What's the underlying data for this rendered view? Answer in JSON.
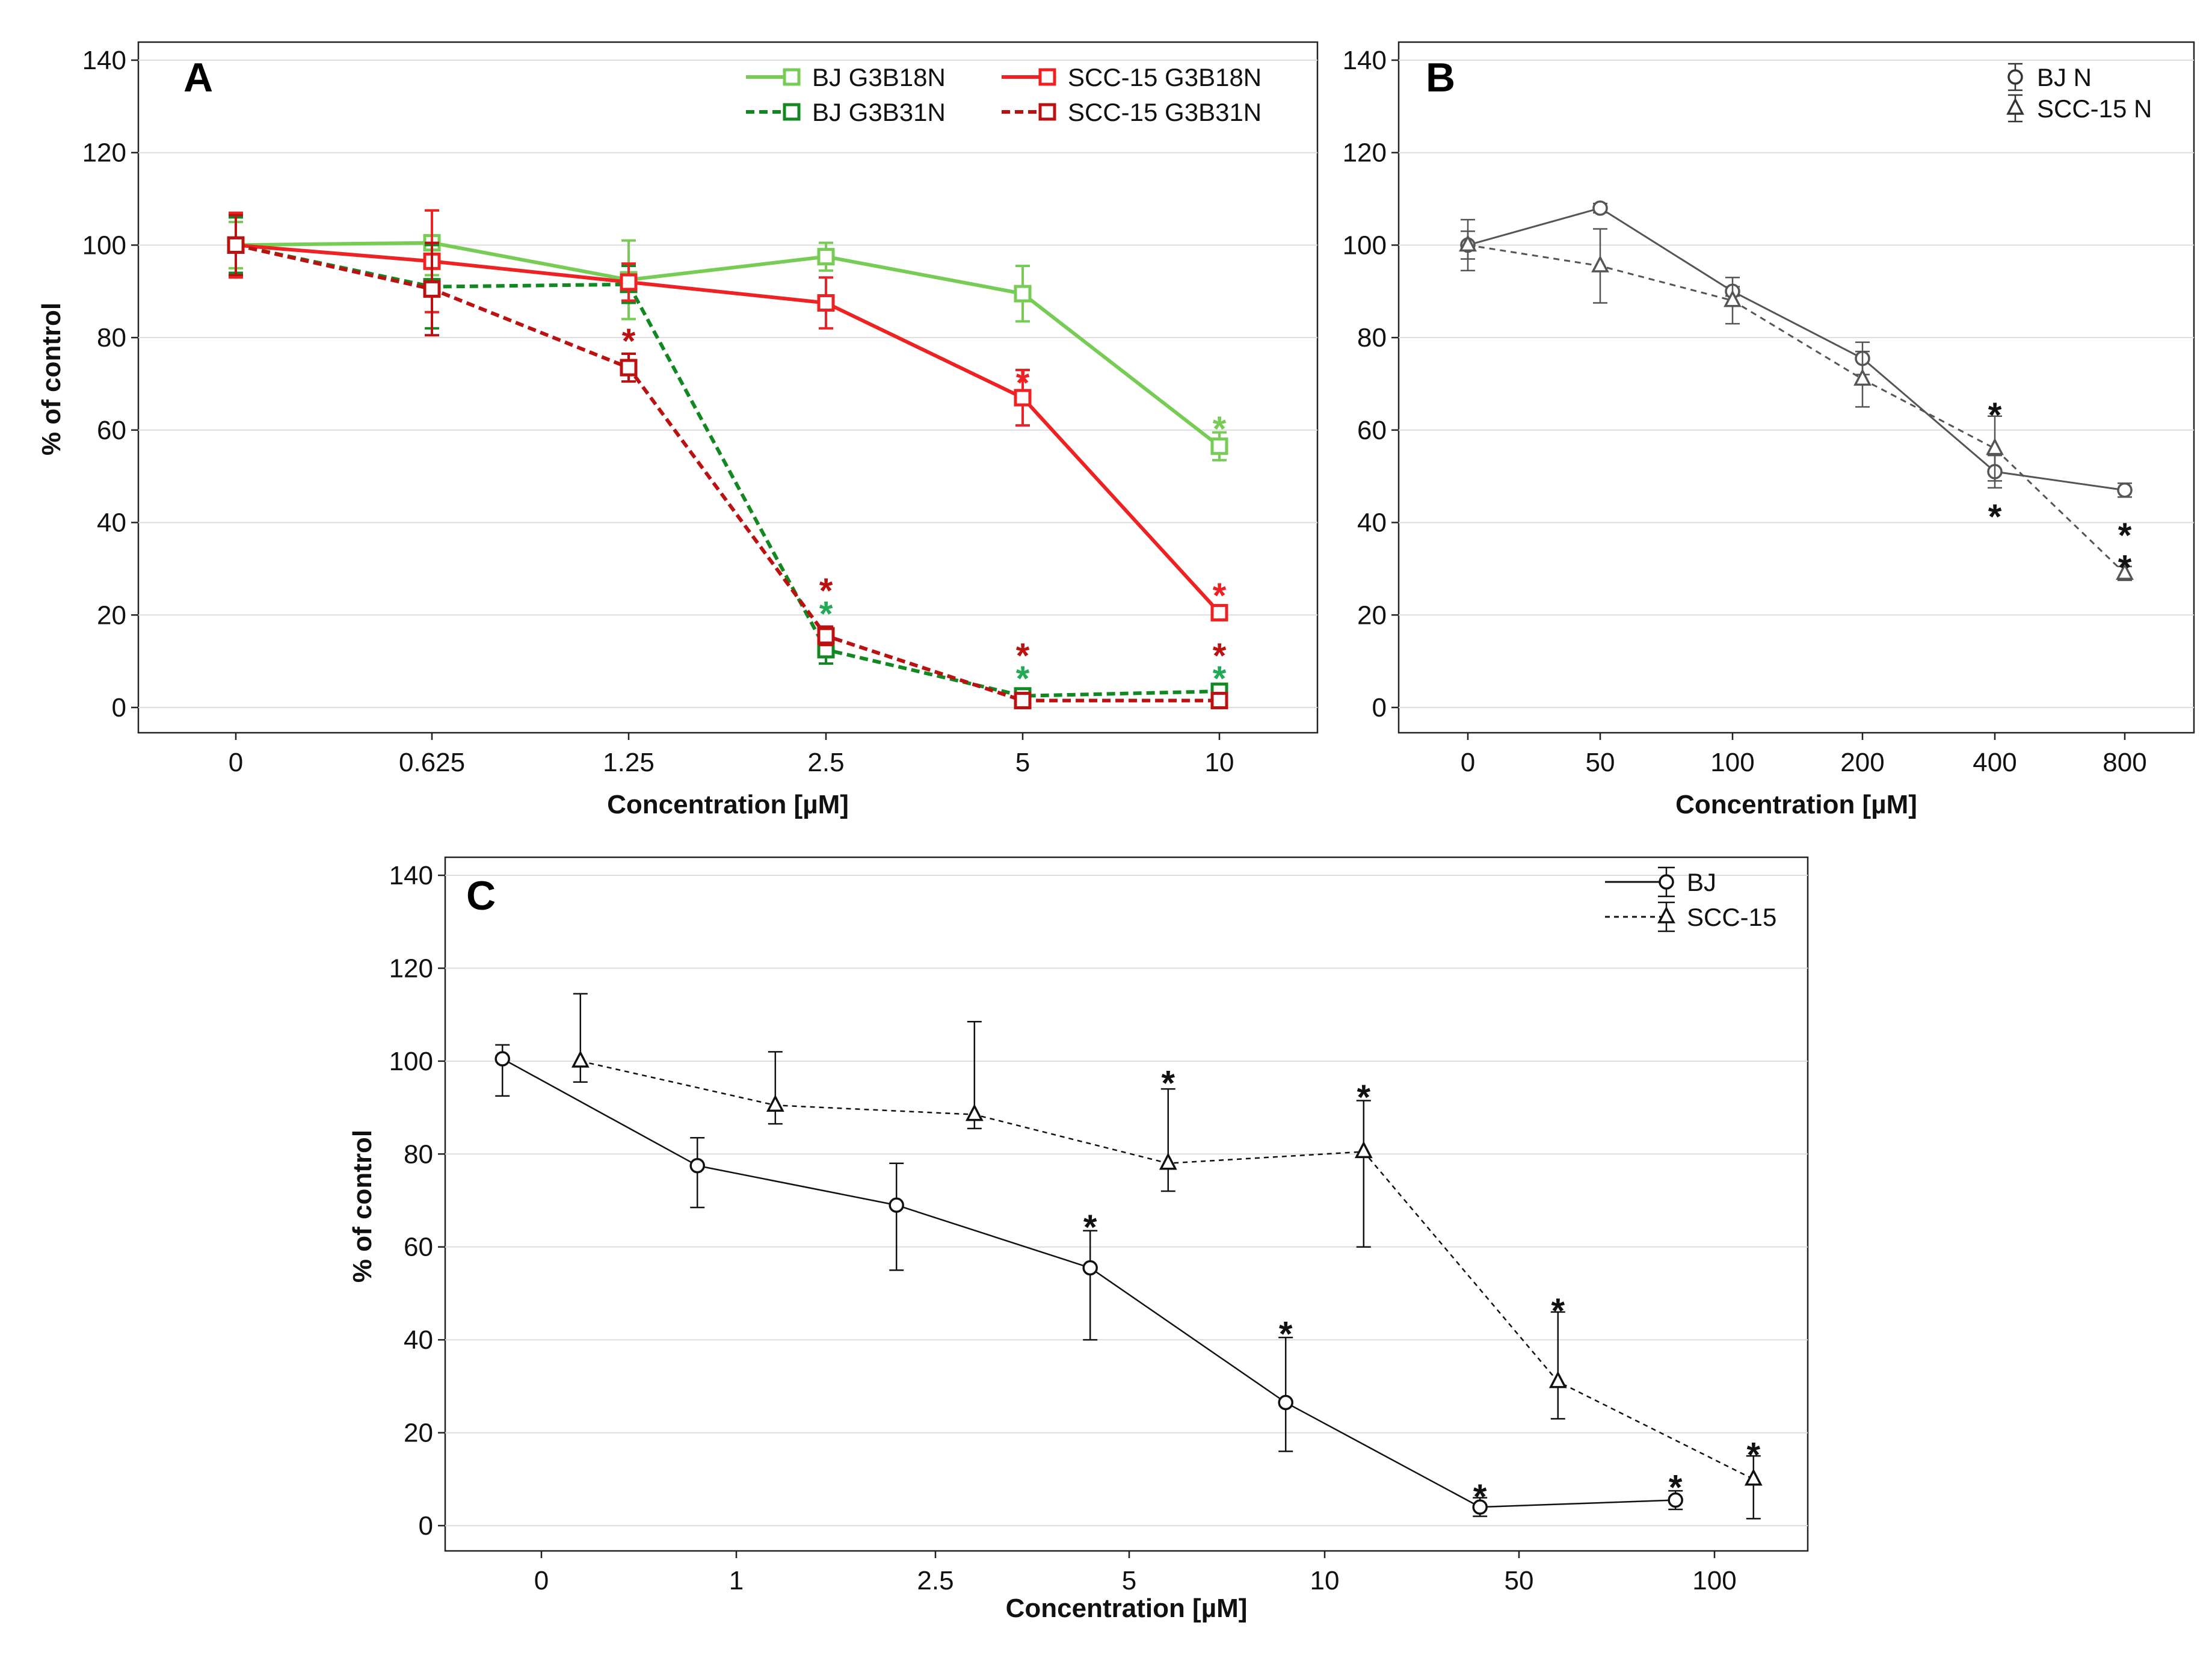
{
  "chart_data": [
    {
      "panel": "A",
      "type": "line",
      "xlabel": "Concentration [µM]",
      "ylabel": "% of control",
      "categories": [
        "0",
        "0.625",
        "1.25",
        "2.5",
        "5",
        "10"
      ],
      "ylim": [
        0,
        140
      ],
      "yticks": [
        "0",
        "20",
        "40",
        "60",
        "80",
        "100",
        "120",
        "140"
      ],
      "grid": true,
      "legend": "top-right",
      "series": [
        {
          "name": "BJ G3B18N",
          "color": "#77cc55",
          "dash": false,
          "values": [
            100,
            100.5,
            92.5,
            97.5,
            89.5,
            56.5
          ],
          "err": [
            5,
            7,
            8.5,
            3,
            6,
            3
          ]
        },
        {
          "name": "BJ G3B31N",
          "color": "#118822",
          "dash": true,
          "values": [
            100,
            91,
            91.5,
            12.5,
            2.5,
            3.5
          ],
          "err": [
            6,
            9,
            4,
            3,
            1,
            1
          ]
        },
        {
          "name": "SCC-15 G3B18N",
          "color": "#ee2222",
          "dash": false,
          "values": [
            100,
            96.5,
            92,
            87.5,
            67,
            20.5
          ],
          "err": [
            7,
            11,
            4,
            5.5,
            6,
            1.5
          ]
        },
        {
          "name": "SCC-15 G3B31N",
          "color": "#bb1111",
          "dash": true,
          "values": [
            100,
            90.5,
            73.5,
            15.5,
            1.5,
            1.5
          ],
          "err": [
            6.5,
            10,
            3,
            2,
            1,
            1
          ]
        }
      ],
      "annotations": [
        {
          "text": "*",
          "x": "1.25",
          "y": 80,
          "color": "#bb1111"
        },
        {
          "text": "*",
          "x": "2.5",
          "y": 26,
          "color": "#bb1111"
        },
        {
          "text": "*",
          "x": "2.5",
          "y": 21,
          "color": "#22aa55"
        },
        {
          "text": "*",
          "x": "5",
          "y": 71,
          "color": "#ee2222"
        },
        {
          "text": "*",
          "x": "5",
          "y": 12,
          "color": "#bb1111"
        },
        {
          "text": "*",
          "x": "5",
          "y": 7,
          "color": "#22aa55"
        },
        {
          "text": "*",
          "x": "10",
          "y": 61,
          "color": "#77cc55"
        },
        {
          "text": "*",
          "x": "10",
          "y": 25,
          "color": "#ee2222"
        },
        {
          "text": "*",
          "x": "10",
          "y": 12,
          "color": "#bb1111"
        },
        {
          "text": "*",
          "x": "10",
          "y": 7,
          "color": "#22aa55"
        }
      ]
    },
    {
      "panel": "B",
      "type": "line",
      "xlabel": "Concentration [µM]",
      "ylabel": "",
      "categories": [
        "0",
        "50",
        "100",
        "200",
        "400",
        "800"
      ],
      "ylim": [
        0,
        140
      ],
      "yticks": [
        "0",
        "20",
        "40",
        "60",
        "80",
        "100",
        "120",
        "140"
      ],
      "grid": true,
      "legend": "top-right",
      "series": [
        {
          "name": "BJ N",
          "color": "#555555",
          "dash": false,
          "marker": "circle",
          "values": [
            100,
            108,
            90,
            75.5,
            51,
            47
          ],
          "err": [
            3,
            1,
            1,
            3.5,
            3.5,
            1.5
          ]
        },
        {
          "name": "SCC-15 N",
          "color": "#555555",
          "dash": true,
          "marker": "triangle",
          "values": [
            100,
            95.5,
            88,
            71,
            56,
            29
          ],
          "err": [
            5.5,
            8,
            5,
            6,
            7,
            1.5
          ]
        }
      ],
      "annotations": [
        {
          "text": "*",
          "x": "400",
          "y": 64,
          "color": "#111111"
        },
        {
          "text": "*",
          "x": "400",
          "y": 42,
          "color": "#111111"
        },
        {
          "text": "*",
          "x": "800",
          "y": 38,
          "color": "#111111"
        },
        {
          "text": "*",
          "x": "800",
          "y": 31,
          "color": "#111111"
        }
      ]
    },
    {
      "panel": "C",
      "type": "line",
      "xlabel": "Concentration [µM]",
      "ylabel": "% of control",
      "categories": [
        "0",
        "1",
        "2.5",
        "5",
        "10",
        "50",
        "100"
      ],
      "ylim": [
        0,
        140
      ],
      "yticks": [
        "0",
        "20",
        "40",
        "60",
        "80",
        "100",
        "120",
        "140"
      ],
      "grid": true,
      "legend": "top-right",
      "series": [
        {
          "name": "BJ",
          "color": "#111111",
          "dash": false,
          "marker": "circle",
          "offset": -0.2,
          "values": [
            100.5,
            77.5,
            69,
            55.5,
            26.5,
            4,
            5.5
          ],
          "err_up": [
            3,
            6,
            9,
            8,
            14,
            2,
            2
          ],
          "err_down": [
            8,
            9,
            14,
            15.5,
            10.5,
            2,
            2
          ]
        },
        {
          "name": "SCC-15",
          "color": "#111111",
          "dash": true,
          "marker": "triangle",
          "offset": 0.2,
          "values": [
            100,
            90.5,
            88.5,
            78,
            80.5,
            31,
            10
          ],
          "err_up": [
            14.5,
            11.5,
            20,
            16,
            11,
            15,
            5
          ],
          "err_down": [
            4.5,
            4,
            3,
            6,
            20.5,
            8,
            8.5
          ]
        }
      ],
      "annotations": [
        {
          "text": "*",
          "x": "5",
          "series": "BJ",
          "y": 65,
          "color": "#111111"
        },
        {
          "text": "*",
          "x": "10",
          "series": "BJ",
          "y": 42,
          "color": "#111111"
        },
        {
          "text": "*",
          "x": "50",
          "series": "BJ",
          "y": 7,
          "color": "#111111"
        },
        {
          "text": "*",
          "x": "100",
          "series": "BJ",
          "y": 9,
          "color": "#111111"
        },
        {
          "text": "*",
          "x": "5",
          "series": "SCC-15",
          "y": 96,
          "color": "#111111"
        },
        {
          "text": "*",
          "x": "10",
          "series": "SCC-15",
          "y": 93,
          "color": "#111111"
        },
        {
          "text": "*",
          "x": "50",
          "series": "SCC-15",
          "y": 47,
          "color": "#111111"
        },
        {
          "text": "*",
          "x": "100",
          "series": "SCC-15",
          "y": 16,
          "color": "#111111"
        }
      ]
    }
  ]
}
